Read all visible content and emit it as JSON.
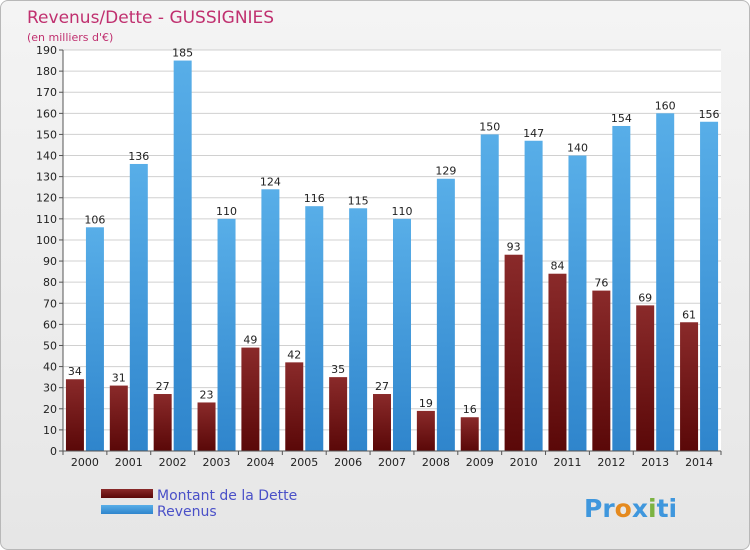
{
  "title": "Revenus/Dette - GUSSIGNIES",
  "subtitle": "(en milliers d'€)",
  "brand": "Proxiti",
  "colors": {
    "title": "#c0306f",
    "series_dette": "#6b0f0f",
    "series_revenus": "#3f97dd",
    "legend_text": "#4a50c8"
  },
  "chart_data": {
    "type": "bar",
    "categories": [
      "2000",
      "2001",
      "2002",
      "2003",
      "2004",
      "2005",
      "2006",
      "2007",
      "2008",
      "2009",
      "2010",
      "2011",
      "2012",
      "2013",
      "2014"
    ],
    "series": [
      {
        "name": "Montant de la Dette",
        "values": [
          34,
          31,
          27,
          23,
          49,
          42,
          35,
          27,
          19,
          16,
          93,
          84,
          76,
          69,
          61
        ]
      },
      {
        "name": "Revenus",
        "values": [
          106,
          136,
          185,
          110,
          124,
          116,
          115,
          110,
          129,
          150,
          147,
          140,
          154,
          160,
          156
        ]
      }
    ],
    "ylim": [
      0,
      190
    ],
    "yticks": [
      0,
      10,
      20,
      30,
      40,
      50,
      60,
      70,
      80,
      90,
      100,
      110,
      120,
      130,
      140,
      150,
      160,
      170,
      180,
      190
    ],
    "grid": true,
    "legend_position": "bottom-left"
  }
}
